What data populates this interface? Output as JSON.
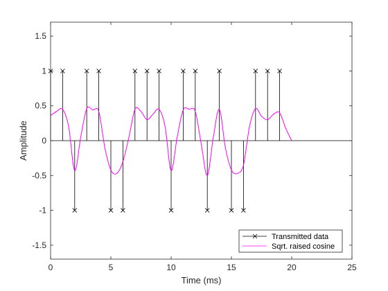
{
  "chart_data": {
    "type": "line",
    "title": "",
    "xlabel": "Time (ms)",
    "ylabel": "Amplitude",
    "xlim": [
      0,
      25
    ],
    "ylim": [
      -1.7,
      1.7
    ],
    "xticks": [
      0,
      5,
      10,
      15,
      20,
      25
    ],
    "yticks": [
      -1.5,
      -1,
      -0.5,
      0,
      0.5,
      1,
      1.5
    ],
    "xtick_labels": [
      "0",
      "5",
      "10",
      "15",
      "20",
      "25"
    ],
    "ytick_labels": [
      "-1.5",
      "-1",
      "-0.5",
      "0",
      "0.5",
      "1",
      "1.5"
    ],
    "grid": false,
    "legend_position": "bottom-right",
    "series": [
      {
        "name": "Transmitted data",
        "kind": "stem",
        "marker": "x",
        "color": "#000000",
        "x": [
          0,
          1,
          2,
          3,
          4,
          5,
          6,
          7,
          8,
          9,
          10,
          11,
          12,
          13,
          14,
          15,
          16,
          17,
          18,
          19
        ],
        "y": [
          1,
          1,
          -1,
          1,
          1,
          -1,
          -1,
          1,
          1,
          1,
          -1,
          1,
          1,
          -1,
          1,
          -1,
          -1,
          1,
          1,
          1
        ]
      },
      {
        "name": "Sqrt. raised cosine",
        "kind": "line",
        "color": "#ff00ff",
        "x": [
          0,
          0.5,
          1,
          1.5,
          2,
          2.5,
          3,
          3.5,
          4,
          4.5,
          5,
          5.5,
          6,
          6.5,
          7,
          7.5,
          8,
          8.5,
          9,
          9.5,
          10,
          10.5,
          11,
          11.5,
          12,
          12.5,
          13,
          13.5,
          14,
          14.5,
          15,
          15.5,
          16,
          16.5,
          17,
          17.5,
          18,
          18.5,
          19,
          19.5,
          20
        ],
        "y": [
          0.36,
          0.42,
          0.45,
          0.2,
          -0.43,
          0.05,
          0.46,
          0.44,
          0.42,
          -0.1,
          -0.42,
          -0.47,
          -0.3,
          0.05,
          0.45,
          0.42,
          0.3,
          0.38,
          0.45,
          0.2,
          -0.43,
          0.05,
          0.44,
          0.45,
          0.42,
          -0.05,
          -0.5,
          0.05,
          0.45,
          -0.1,
          -0.42,
          -0.47,
          -0.35,
          0.2,
          0.46,
          0.35,
          0.3,
          0.38,
          0.4,
          0.18,
          0
        ]
      }
    ]
  }
}
